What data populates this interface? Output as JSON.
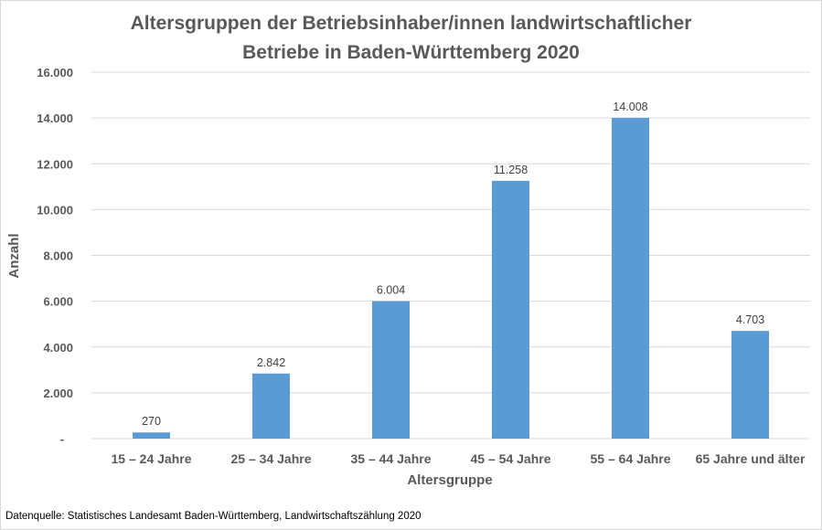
{
  "chart_data": {
    "type": "bar",
    "title_lines": [
      "Altersgruppen der Betriebsinhaber/innen landwirtschaftlicher",
      "Betriebe  in Baden-Württemberg 2020"
    ],
    "xlabel": "Altersgruppe",
    "ylabel": "Anzahl",
    "categories": [
      "15 – 24 Jahre",
      "25 – 34 Jahre",
      "35 – 44 Jahre",
      "45 – 54 Jahre",
      "55 – 64 Jahre",
      "65 Jahre und älter"
    ],
    "values": [
      270,
      2842,
      6004,
      11258,
      14008,
      4703
    ],
    "data_labels": [
      "270",
      "2.842",
      "6.004",
      "11.258",
      "14.008",
      "4.703"
    ],
    "ylim": [
      0,
      16000
    ],
    "yticks": [
      0,
      2000,
      4000,
      6000,
      8000,
      10000,
      12000,
      14000,
      16000
    ],
    "ytick_labels": [
      "-",
      "2.000",
      "4.000",
      "6.000",
      "8.000",
      "10.000",
      "12.000",
      "14.000",
      "16.000"
    ],
    "grid": true,
    "legend": "none",
    "bar_color": "#5b9bd5",
    "source": "Datenquelle: Statistisches Landesamt Baden-Württemberg,  Landwirtschaftszählung 2020"
  }
}
